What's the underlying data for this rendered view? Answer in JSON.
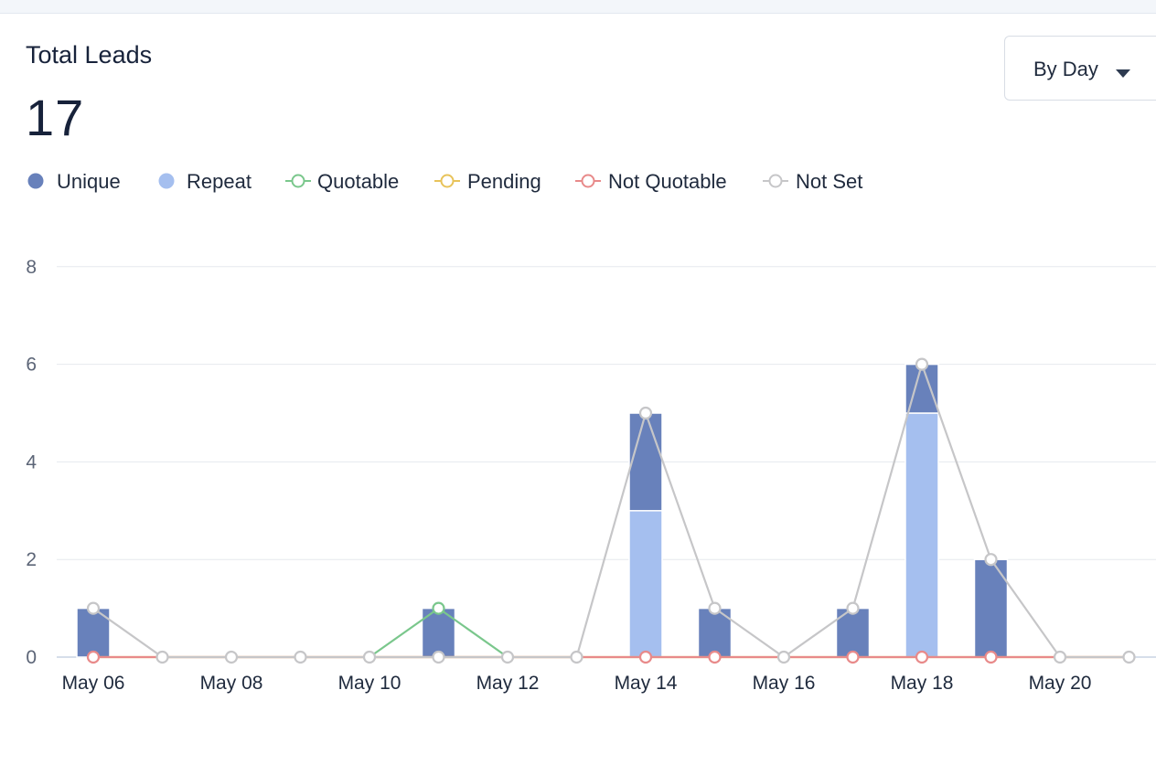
{
  "header": {
    "title": "Total Leads",
    "total": "17",
    "dropdown_label": "By Day"
  },
  "colors": {
    "unique": "#6881bb",
    "repeat": "#a5bfef",
    "quotable": "#7ac78c",
    "pending": "#e8c35a",
    "not_quotable": "#e88a8a",
    "not_set": "#c6c6c8",
    "grid": "#e6e9ee",
    "axis_text": "#5c6577"
  },
  "legend": [
    {
      "label": "Unique",
      "style": "dot",
      "color": "#6881bb"
    },
    {
      "label": "Repeat",
      "style": "dot",
      "color": "#a5bfef"
    },
    {
      "label": "Quotable",
      "style": "line",
      "color": "#7ac78c"
    },
    {
      "label": "Pending",
      "style": "line",
      "color": "#e8c35a"
    },
    {
      "label": "Not Quotable",
      "style": "line",
      "color": "#e88a8a"
    },
    {
      "label": "Not Set",
      "style": "line",
      "color": "#c6c6c8"
    }
  ],
  "chart_data": {
    "type": "bar",
    "x": [
      "May 06",
      "May 07",
      "May 08",
      "May 09",
      "May 10",
      "May 11",
      "May 12",
      "May 13",
      "May 14",
      "May 15",
      "May 16",
      "May 17",
      "May 18",
      "May 19",
      "May 20",
      "May 21"
    ],
    "x_tick_labels": [
      "May 06",
      "May 08",
      "May 10",
      "May 12",
      "May 14",
      "May 16",
      "May 18",
      "May 20"
    ],
    "y_ticks": [
      "0",
      "2",
      "4",
      "6",
      "8"
    ],
    "ylim": [
      0,
      8
    ],
    "grid": true,
    "legend_position": "top-left",
    "bars": [
      {
        "name": "Repeat",
        "values": [
          0,
          0,
          0,
          0,
          0,
          0,
          0,
          0,
          3,
          0,
          0,
          0,
          5,
          0,
          0,
          0
        ]
      },
      {
        "name": "Unique",
        "values": [
          1,
          0,
          0,
          0,
          0,
          1,
          0,
          0,
          2,
          1,
          0,
          1,
          1,
          2,
          0,
          0
        ]
      }
    ],
    "lines": [
      {
        "name": "Quotable",
        "values": [
          0,
          0,
          0,
          0,
          0,
          1,
          0,
          0,
          0,
          0,
          0,
          0,
          0,
          0,
          0,
          0
        ]
      },
      {
        "name": "Pending",
        "values": [
          0,
          0,
          0,
          0,
          0,
          0,
          0,
          0,
          0,
          0,
          0,
          0,
          0,
          0,
          0,
          0
        ]
      },
      {
        "name": "Not Quotable",
        "values": [
          0,
          0,
          0,
          0,
          0,
          0,
          0,
          0,
          0,
          0,
          0,
          0,
          0,
          0,
          0,
          0
        ]
      },
      {
        "name": "Not Set",
        "values": [
          1,
          0,
          0,
          0,
          0,
          0,
          0,
          0,
          5,
          1,
          0,
          1,
          6,
          2,
          0,
          0
        ]
      }
    ]
  }
}
